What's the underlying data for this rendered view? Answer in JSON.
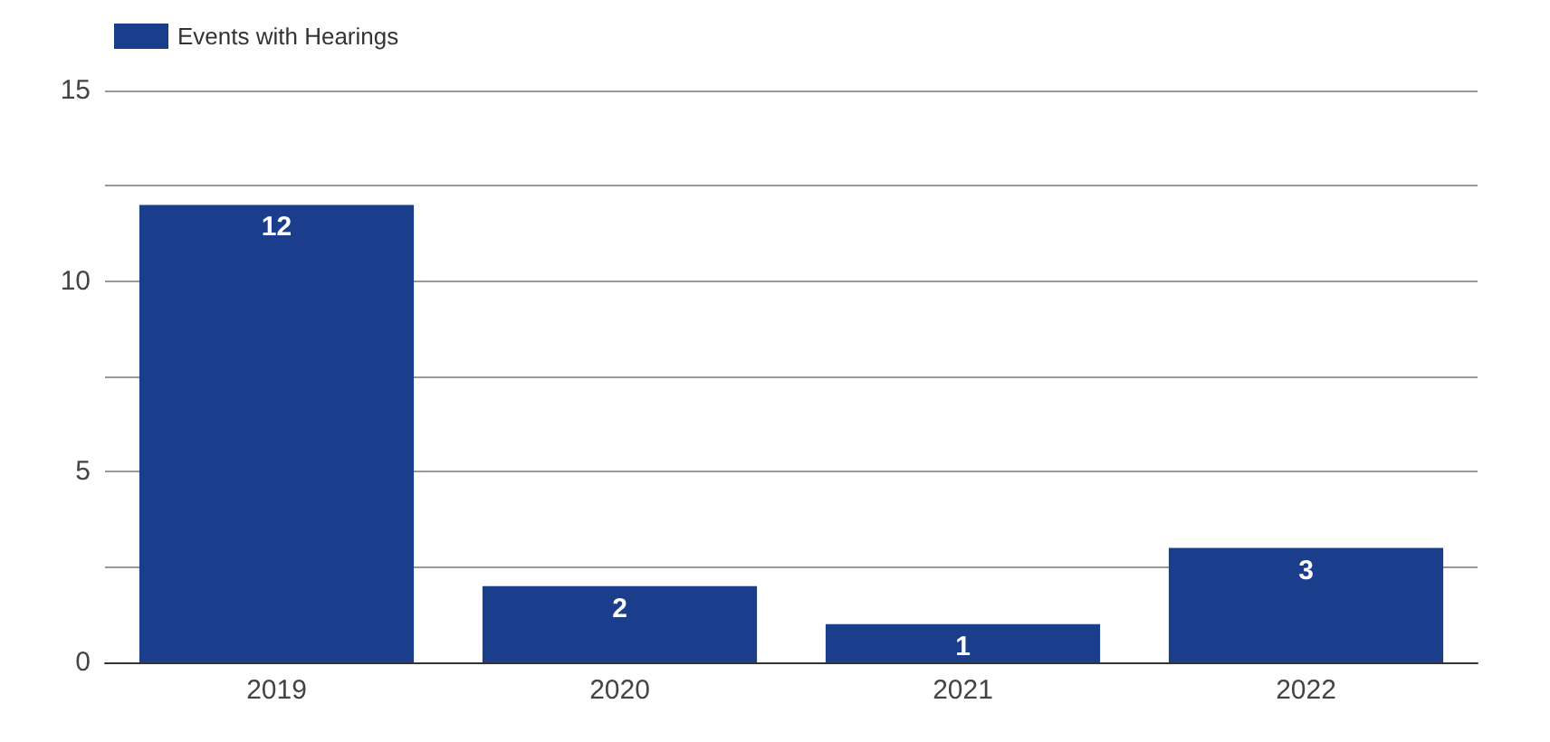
{
  "chart_data": {
    "type": "bar",
    "categories": [
      "2019",
      "2020",
      "2021",
      "2022"
    ],
    "series": [
      {
        "name": "Events with Hearings",
        "color": "#1a3e8c",
        "values": [
          12,
          2,
          1,
          3
        ]
      }
    ],
    "ylim": [
      0,
      15
    ],
    "yticks": [
      0,
      {
        "value": 2.5,
        "label": null
      },
      5,
      {
        "value": 7.5,
        "label": null
      },
      10,
      {
        "value": 12.5,
        "label": null
      },
      15
    ],
    "grid": "y",
    "legend": "top left",
    "data_labels": true
  }
}
